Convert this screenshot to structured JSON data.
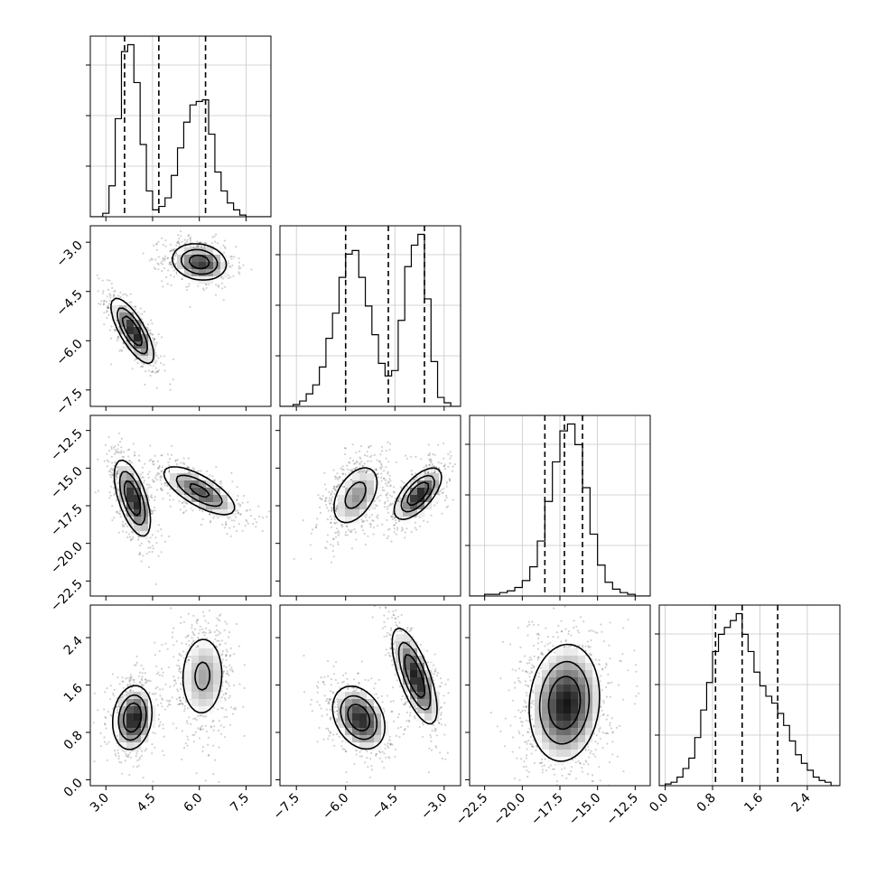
{
  "chart_data": {
    "type": "corner",
    "parameters": [
      {
        "index": 0,
        "range": [
          2.5,
          8.3
        ],
        "ticks": [
          3.0,
          4.5,
          6.0,
          7.5
        ],
        "tick_labels": [
          "3.0",
          "4.5",
          "6.0",
          "7.5"
        ],
        "quantiles": [
          3.6,
          4.7,
          6.2
        ],
        "hist": {
          "edges": [
            2.5,
            2.7,
            2.9,
            3.1,
            3.3,
            3.5,
            3.7,
            3.9,
            4.1,
            4.3,
            4.5,
            4.7,
            4.9,
            5.1,
            5.3,
            5.5,
            5.7,
            5.9,
            6.1,
            6.3,
            6.5,
            6.7,
            6.9,
            7.1,
            7.3,
            7.5,
            7.7,
            7.9,
            8.1,
            8.3
          ],
          "counts": [
            0,
            0,
            2,
            18,
            57,
            96,
            100,
            78,
            42,
            15,
            4,
            6,
            11,
            24,
            40,
            55,
            65,
            67,
            68,
            48,
            26,
            15,
            8,
            4,
            1,
            0,
            0,
            0,
            0
          ]
        }
      },
      {
        "index": 1,
        "range": [
          -8.0,
          -2.5
        ],
        "ticks": [
          -7.5,
          -6.0,
          -4.5,
          -3.0
        ],
        "tick_labels": [
          "−7.5",
          "−6.0",
          "−4.5",
          "−3.0"
        ],
        "quantiles": [
          -6.0,
          -4.7,
          -3.6
        ],
        "hist": {
          "edges": [
            -8.0,
            -7.8,
            -7.6,
            -7.4,
            -7.2,
            -7.0,
            -6.8,
            -6.6,
            -6.4,
            -6.2,
            -6.0,
            -5.8,
            -5.6,
            -5.4,
            -5.2,
            -5.0,
            -4.8,
            -4.6,
            -4.4,
            -4.2,
            -4.0,
            -3.8,
            -3.6,
            -3.4,
            -3.2,
            -3.0,
            -2.8,
            -2.6,
            -2.5
          ],
          "counts": [
            0,
            0,
            1,
            3,
            7,
            12,
            22,
            38,
            52,
            72,
            85,
            87,
            72,
            56,
            40,
            24,
            17,
            20,
            48,
            78,
            90,
            96,
            60,
            25,
            5,
            2,
            0,
            0
          ]
        }
      },
      {
        "index": 2,
        "range": [
          -23.5,
          -11.5
        ],
        "ticks": [
          -22.5,
          -20.0,
          -17.5,
          -15.0,
          -12.5
        ],
        "tick_labels": [
          "−22.5",
          "−20.0",
          "−17.5",
          "−15.0",
          "−12.5"
        ],
        "quantiles": [
          -18.5,
          -17.2,
          -16.0
        ],
        "hist": {
          "edges": [
            -23.5,
            -23.0,
            -22.5,
            -22.0,
            -21.5,
            -21.0,
            -20.5,
            -20.0,
            -19.5,
            -19.0,
            -18.5,
            -18.0,
            -17.5,
            -17.0,
            -16.5,
            -16.0,
            -15.5,
            -15.0,
            -14.5,
            -14.0,
            -13.5,
            -13.0,
            -12.5,
            -12.0,
            -11.5
          ],
          "counts": [
            0,
            0,
            1,
            1,
            2,
            3,
            5,
            9,
            17,
            32,
            55,
            78,
            96,
            100,
            88,
            63,
            36,
            18,
            8,
            4,
            2,
            1,
            0,
            0
          ]
        }
      },
      {
        "index": 3,
        "range": [
          -0.1,
          2.95
        ],
        "ticks": [
          0.0,
          0.8,
          1.6,
          2.4
        ],
        "tick_labels": [
          "0.0",
          "0.8",
          "1.6",
          "2.4"
        ],
        "quantiles": [
          0.85,
          1.3,
          1.9
        ],
        "hist": {
          "edges": [
            -0.1,
            0.0,
            0.1,
            0.2,
            0.3,
            0.4,
            0.5,
            0.6,
            0.7,
            0.8,
            0.9,
            1.0,
            1.1,
            1.2,
            1.3,
            1.4,
            1.5,
            1.6,
            1.7,
            1.8,
            1.9,
            2.0,
            2.1,
            2.2,
            2.3,
            2.4,
            2.5,
            2.6,
            2.7,
            2.8,
            2.95
          ],
          "counts": [
            0,
            1,
            2,
            5,
            10,
            16,
            28,
            44,
            60,
            78,
            88,
            92,
            96,
            100,
            88,
            78,
            66,
            58,
            52,
            48,
            42,
            35,
            26,
            18,
            13,
            9,
            5,
            3,
            2,
            0
          ]
        }
      }
    ],
    "pairs": [
      {
        "x_index": 0,
        "y_index": 1,
        "clusters": [
          {
            "center": [
              3.85,
              -5.7
            ],
            "sx": 0.38,
            "sy": 0.55,
            "rho": -0.75,
            "weight": 0.5
          },
          {
            "center": [
              6.0,
              -3.6
            ],
            "sx": 0.5,
            "sy": 0.32,
            "rho": -0.15,
            "weight": 0.5
          }
        ]
      },
      {
        "x_index": 0,
        "y_index": 2,
        "clusters": [
          {
            "center": [
              3.85,
              -17.0
            ],
            "sx": 0.32,
            "sy": 1.4,
            "rho": -0.6,
            "weight": 0.5
          },
          {
            "center": [
              6.0,
              -16.5
            ],
            "sx": 0.68,
            "sy": 0.95,
            "rho": -0.72,
            "weight": 0.5
          }
        ]
      },
      {
        "x_index": 0,
        "y_index": 3,
        "clusters": [
          {
            "center": [
              3.85,
              1.05
            ],
            "sx": 0.35,
            "sy": 0.3,
            "rho": 0.15,
            "weight": 0.5
          },
          {
            "center": [
              6.1,
              1.75
            ],
            "sx": 0.45,
            "sy": 0.45,
            "rho": 0.05,
            "weight": 0.5
          }
        ]
      },
      {
        "x_index": 1,
        "y_index": 2,
        "clusters": [
          {
            "center": [
              -5.7,
              -16.8
            ],
            "sx": 0.45,
            "sy": 1.25,
            "rho": 0.45,
            "weight": 0.5
          },
          {
            "center": [
              -3.8,
              -16.7
            ],
            "sx": 0.4,
            "sy": 0.95,
            "rho": 0.65,
            "weight": 0.5
          }
        ]
      },
      {
        "x_index": 1,
        "y_index": 3,
        "clusters": [
          {
            "center": [
              -5.6,
              1.05
            ],
            "sx": 0.45,
            "sy": 0.3,
            "rho": -0.3,
            "weight": 0.5
          },
          {
            "center": [
              -3.9,
              1.75
            ],
            "sx": 0.38,
            "sy": 0.45,
            "rho": -0.7,
            "weight": 0.5
          }
        ]
      },
      {
        "x_index": 2,
        "y_index": 3,
        "clusters": [
          {
            "center": [
              -17.2,
              1.3
            ],
            "sx": 1.3,
            "sy": 0.55,
            "rho": 0.1,
            "weight": 1.0
          }
        ]
      }
    ],
    "contour_levels": [
      0.2,
      0.45,
      0.72
    ],
    "grid": true,
    "title": "",
    "axis_labels": []
  }
}
